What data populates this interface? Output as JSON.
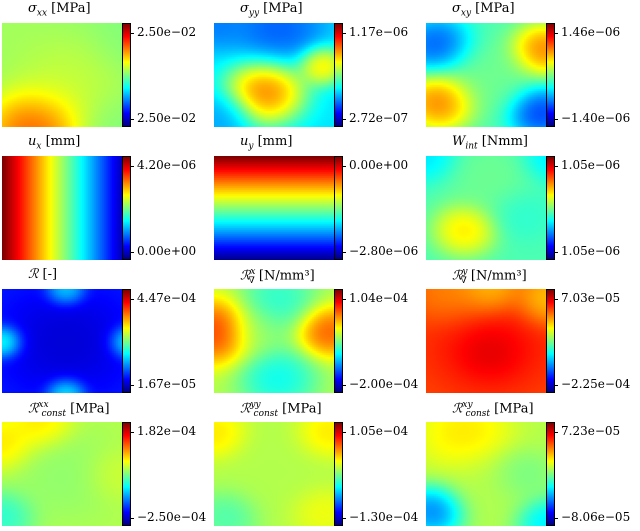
{
  "colormap": [
    "#00007f",
    "#0000ff",
    "#007fff",
    "#00ffff",
    "#7fff7f",
    "#ffff00",
    "#ff7f00",
    "#ff0000",
    "#7f0000"
  ],
  "panels": [
    {
      "sym": "σ",
      "sub": "xx",
      "sup": "",
      "grad": "",
      "unit": "[MPa]",
      "top": "2.50e−02",
      "bottom": "2.50e−02",
      "blobs": [
        [
          0.0,
          0.0,
          0.35,
          0.55
        ],
        [
          1.0,
          0.15,
          0.25,
          0.5
        ],
        [
          0.25,
          1.0,
          0.3,
          0.95
        ],
        [
          0.9,
          1.0,
          0.25,
          0.5
        ],
        [
          0.5,
          0.55,
          0.45,
          0.6
        ]
      ],
      "base": 0.5
    },
    {
      "sym": "σ",
      "sub": "yy",
      "sup": "",
      "grad": "",
      "unit": "[MPa]",
      "top": "1.17e−06",
      "bottom": "2.72e−07",
      "blobs": [
        [
          0.4,
          0.65,
          0.25,
          0.95
        ],
        [
          0.85,
          0.4,
          0.15,
          0.8
        ],
        [
          0.0,
          0.0,
          0.2,
          0.2
        ],
        [
          0.5,
          0.05,
          0.3,
          0.15
        ],
        [
          0.05,
          0.9,
          0.2,
          0.25
        ]
      ],
      "base": 0.35
    },
    {
      "sym": "σ",
      "sub": "xy",
      "sup": "",
      "grad": "",
      "unit": "[MPa]",
      "top": "1.46e−06",
      "bottom": "−1.40e−06",
      "blobs": [
        [
          0.08,
          0.2,
          0.22,
          0.1
        ],
        [
          0.92,
          0.25,
          0.2,
          0.9
        ],
        [
          0.1,
          0.75,
          0.22,
          0.9
        ],
        [
          0.9,
          0.85,
          0.2,
          0.05
        ],
        [
          0.5,
          0.5,
          0.3,
          0.5
        ]
      ],
      "base": 0.45
    },
    {
      "sym": "u",
      "sub": "x",
      "sup": "",
      "grad": "",
      "unit": "[mm]",
      "top": "4.20e−06",
      "bottom": "0.00e+00",
      "linear": "x",
      "base": 0
    },
    {
      "sym": "u",
      "sub": "y",
      "sup": "",
      "grad": "",
      "unit": "[mm]",
      "top": "0.00e+00",
      "bottom": "−2.80e−06",
      "linear": "y",
      "base": 0
    },
    {
      "sym": "W",
      "sub": "int",
      "sup": "",
      "grad": "",
      "unit": "[Nmm]",
      "top": "1.05e−06",
      "bottom": "1.05e−06",
      "blobs": [
        [
          0.3,
          0.7,
          0.2,
          0.75
        ],
        [
          0.0,
          0.0,
          0.2,
          0.3
        ],
        [
          1.0,
          0.0,
          0.2,
          0.3
        ],
        [
          0.75,
          0.55,
          0.2,
          0.4
        ],
        [
          0.5,
          0.2,
          0.3,
          0.5
        ]
      ],
      "base": 0.45
    },
    {
      "sym": "ℛ",
      "sub": "",
      "sup": "",
      "grad": "",
      "unit": "[-]",
      "top": "4.47e−04",
      "bottom": "1.67e−05",
      "blobs": [
        [
          0.5,
          0.5,
          0.4,
          0.05
        ],
        [
          0.0,
          0.5,
          0.12,
          0.55
        ],
        [
          1.0,
          0.5,
          0.12,
          0.5
        ],
        [
          0.5,
          1.0,
          0.12,
          0.5
        ],
        [
          0.5,
          0.0,
          0.12,
          0.45
        ]
      ],
      "base": 0.15
    },
    {
      "sym": "ℛ",
      "sub": "∇",
      "sup": "x",
      "grad": "",
      "unit": "[N/mm³]",
      "top": "1.04e−04",
      "bottom": "−2.00e−04",
      "blobs": [
        [
          0.0,
          0.4,
          0.25,
          0.95
        ],
        [
          0.9,
          0.4,
          0.2,
          0.9
        ],
        [
          0.5,
          0.85,
          0.25,
          0.3
        ],
        [
          0.5,
          0.1,
          0.25,
          0.35
        ],
        [
          0.35,
          0.4,
          0.2,
          0.5
        ]
      ],
      "base": 0.55
    },
    {
      "sym": "ℛ",
      "sub": "∇",
      "sup": "y",
      "grad": "",
      "unit": "[N/mm³]",
      "top": "7.03e−05",
      "bottom": "−2.25e−04",
      "blobs": [
        [
          0.5,
          0.5,
          0.45,
          0.9
        ],
        [
          0.5,
          0.0,
          0.2,
          0.6
        ],
        [
          0.2,
          0.05,
          0.25,
          0.7
        ],
        [
          0.95,
          0.1,
          0.2,
          0.6
        ],
        [
          0.5,
          0.6,
          0.2,
          0.95
        ]
      ],
      "base": 0.8
    },
    {
      "sym": "ℛ",
      "sub": "const",
      "sup": "xx",
      "grad": "",
      "unit": "[MPa]",
      "top": "1.82e−04",
      "bottom": "−2.50e−04",
      "blobs": [
        [
          0.0,
          0.2,
          0.2,
          0.7
        ],
        [
          0.3,
          0.0,
          0.2,
          0.7
        ],
        [
          0.5,
          0.5,
          0.35,
          0.5
        ],
        [
          0.0,
          0.9,
          0.2,
          0.35
        ],
        [
          0.9,
          0.5,
          0.2,
          0.6
        ]
      ],
      "base": 0.55
    },
    {
      "sym": "ℛ",
      "sub": "const",
      "sup": "yy",
      "grad": "",
      "unit": "[MPa]",
      "top": "1.05e−04",
      "bottom": "−1.30e−04",
      "blobs": [
        [
          0.0,
          0.1,
          0.2,
          0.7
        ],
        [
          0.9,
          0.1,
          0.2,
          0.7
        ],
        [
          0.5,
          0.5,
          0.35,
          0.55
        ],
        [
          0.1,
          0.9,
          0.2,
          0.4
        ],
        [
          0.85,
          0.85,
          0.2,
          0.65
        ]
      ],
      "base": 0.55
    },
    {
      "sym": "ℛ",
      "sub": "const",
      "sup": "xy",
      "grad": "",
      "unit": "[MPa]",
      "top": "7.23e−05",
      "bottom": "−8.06e−05",
      "blobs": [
        [
          0.3,
          0.1,
          0.3,
          0.7
        ],
        [
          0.05,
          0.85,
          0.2,
          0.1
        ],
        [
          0.95,
          0.95,
          0.2,
          0.25
        ],
        [
          0.75,
          0.5,
          0.2,
          0.45
        ],
        [
          0.5,
          0.6,
          0.3,
          0.55
        ]
      ],
      "base": 0.55
    }
  ]
}
